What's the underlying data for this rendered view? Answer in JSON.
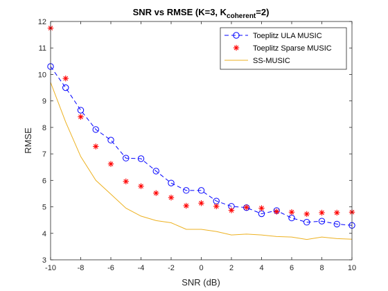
{
  "chart_data": {
    "type": "line",
    "title": {
      "main": "SNR vs RMSE (K=3, K",
      "subscript": "coherent",
      "suffix": "=2)"
    },
    "xlabel": "SNR (dB)",
    "ylabel": "RMSE",
    "xlim": [
      -10,
      10
    ],
    "ylim": [
      3,
      12
    ],
    "xticks": [
      -10,
      -8,
      -6,
      -4,
      -2,
      0,
      2,
      4,
      6,
      8,
      10
    ],
    "yticks": [
      3,
      4,
      5,
      6,
      7,
      8,
      9,
      10,
      11,
      12
    ],
    "grid": false,
    "legend_position": "top-right",
    "x": [
      -10,
      -9,
      -8,
      -7,
      -6,
      -5,
      -4,
      -3,
      -2,
      -1,
      0,
      1,
      2,
      3,
      4,
      5,
      6,
      7,
      8,
      9,
      10
    ],
    "series": [
      {
        "name": "Toeplitz ULA MUSIC",
        "color": "#0000ff",
        "line_style": "dashed",
        "marker": "circle",
        "values": [
          10.3,
          9.5,
          8.65,
          7.92,
          7.52,
          6.84,
          6.82,
          6.35,
          5.9,
          5.62,
          5.62,
          5.22,
          5.02,
          4.97,
          4.74,
          4.86,
          4.58,
          4.42,
          4.46,
          4.35,
          4.3
        ]
      },
      {
        "name": "Toeplitz Sparse MUSIC",
        "color": "#ff0000",
        "line_style": "none",
        "marker": "asterisk",
        "values": [
          11.75,
          9.85,
          8.4,
          7.28,
          6.62,
          5.96,
          5.78,
          5.52,
          5.35,
          5.04,
          5.14,
          5.02,
          4.87,
          4.98,
          4.95,
          4.82,
          4.8,
          4.73,
          4.78,
          4.78,
          4.8
        ]
      },
      {
        "name": "SS-MUSIC",
        "color": "#edb120",
        "line_style": "solid",
        "marker": "none",
        "values": [
          9.7,
          8.2,
          6.9,
          6.0,
          5.48,
          4.95,
          4.65,
          4.48,
          4.4,
          4.15,
          4.15,
          4.07,
          3.94,
          3.97,
          3.94,
          3.88,
          3.86,
          3.77,
          3.86,
          3.8,
          3.78
        ]
      }
    ]
  }
}
